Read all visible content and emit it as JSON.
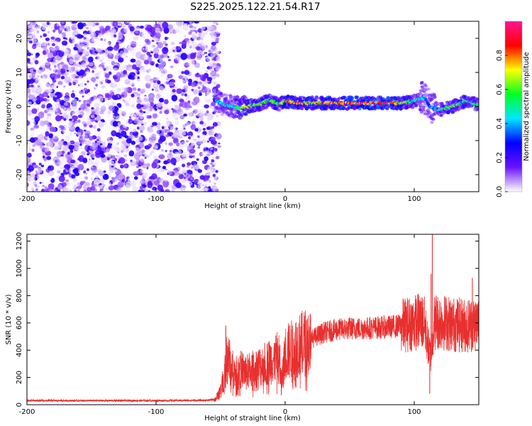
{
  "chart_data": [
    {
      "type": "heatmap",
      "title": "S225.2025.122.21.54.R17",
      "xlabel": "Height of straight line (km)",
      "ylabel": "Frequency (Hz)",
      "xlim": [
        -200,
        150
      ],
      "ylim": [
        -25,
        25
      ],
      "x_ticks": [
        -200,
        -100,
        0,
        100
      ],
      "x_tick_labels": [
        "-200",
        "-100",
        "0",
        "100"
      ],
      "y_ticks": [
        20,
        10,
        0,
        -10,
        -20
      ],
      "y_tick_labels": [
        "20",
        "10",
        "0",
        "-10",
        "-20"
      ],
      "grid": false,
      "colorbar": {
        "label": "Normalized spectral amplitude",
        "range": [
          0,
          1
        ],
        "ticks": [
          0.0,
          0.2,
          0.4,
          0.6,
          0.8
        ],
        "tick_labels": [
          "0.0",
          "0.2",
          "0.4",
          "0.6",
          "0.8"
        ],
        "colors": [
          "#ffffff",
          "#6b12ff",
          "#0000ff",
          "#00e5ff",
          "#00ff22",
          "#ffff00",
          "#ff0000",
          "#ff1493"
        ]
      },
      "regions": [
        {
          "x_range": [
            -200,
            -53
          ],
          "description": "broadband noise",
          "typical_amplitude": [
            0.0,
            0.25
          ]
        },
        {
          "x_range": [
            -53,
            150
          ],
          "center_frequency_hz": 1,
          "typical_amplitude": [
            0.3,
            1.0
          ]
        }
      ],
      "ridge": {
        "x": [
          -55,
          -50,
          -45,
          -40,
          -35,
          -30,
          -20,
          -12,
          -5,
          0,
          10,
          20,
          40,
          60,
          80,
          90,
          100,
          108,
          112,
          120,
          130,
          140,
          150
        ],
        "frequency": [
          2,
          1,
          0.5,
          0,
          -0.5,
          0,
          0.5,
          2,
          0.5,
          1.5,
          1,
          1,
          1,
          1,
          1,
          1,
          1.5,
          3,
          0,
          -1,
          0,
          1.5,
          0.5
        ],
        "amplitude": [
          0.3,
          0.45,
          0.4,
          0.45,
          0.55,
          0.7,
          0.6,
          0.55,
          0.65,
          0.75,
          0.8,
          0.7,
          0.8,
          0.85,
          0.9,
          0.7,
          0.5,
          0.4,
          0.35,
          0.5,
          0.6,
          0.55,
          0.5
        ]
      }
    },
    {
      "type": "line",
      "xlabel": "Height of straight line (km)",
      "ylabel": "SNR (10 * v/v)",
      "xlim": [
        -200,
        150
      ],
      "ylim": [
        0,
        1250
      ],
      "x_ticks": [
        -200,
        -100,
        0,
        100
      ],
      "x_tick_labels": [
        "-200",
        "-100",
        "0",
        "100"
      ],
      "y_ticks": [
        0,
        200,
        400,
        600,
        800,
        1000,
        1200
      ],
      "y_tick_labels": [
        "0",
        "200",
        "400",
        "600",
        "800",
        "1000",
        "1200"
      ],
      "grid": false,
      "color": "#e8302f",
      "envelope": {
        "x": [
          -200,
          -150,
          -100,
          -60,
          -54,
          -50,
          -46,
          -45,
          -42,
          -38,
          -34,
          -30,
          -25,
          -20,
          -15,
          -10,
          -5,
          -3,
          0,
          10,
          20,
          30,
          40,
          50,
          60,
          70,
          80,
          90,
          100,
          105,
          108,
          111,
          113,
          115,
          120,
          130,
          140,
          150
        ],
        "y": [
          30,
          30,
          30,
          32,
          40,
          100,
          260,
          380,
          280,
          230,
          260,
          240,
          260,
          280,
          300,
          330,
          350,
          150,
          380,
          430,
          480,
          530,
          550,
          560,
          560,
          565,
          570,
          580,
          600,
          620,
          590,
          420,
          350,
          600,
          610,
          590,
          580,
          600
        ]
      },
      "spikes": [
        {
          "x": -46,
          "y": 580
        },
        {
          "x": -35,
          "y": 360
        },
        {
          "x": -12,
          "y": 440
        },
        {
          "x": -4,
          "y": 440
        },
        {
          "x": -3,
          "y": 70
        },
        {
          "x": 112,
          "y": 80
        },
        {
          "x": 113,
          "y": 960
        },
        {
          "x": 114,
          "y": 1250
        },
        {
          "x": 117,
          "y": 800
        },
        {
          "x": 145,
          "y": 930
        }
      ]
    }
  ]
}
